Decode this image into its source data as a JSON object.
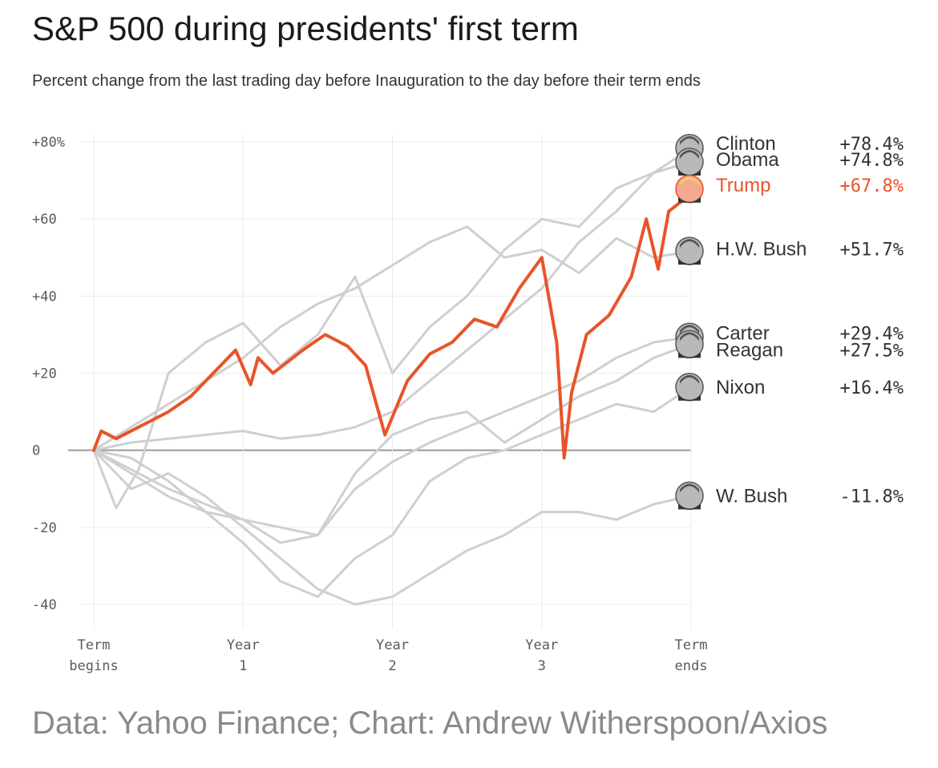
{
  "header": {
    "title": "S&P 500 during presidents' first term",
    "subtitle": "Percent change from the last trading day before Inauguration to the day before their term ends"
  },
  "footer": {
    "source": "Data: Yahoo Finance; Chart: Andrew Witherspoon/Axios"
  },
  "colors": {
    "highlight": "#e8542a",
    "other": "#cfcfcf",
    "zero_line": "#9a9a9a",
    "grid": "#ececec"
  },
  "chart_data": {
    "type": "line",
    "title": "S&P 500 during presidents' first term",
    "subtitle": "Percent change from the last trading day before Inauguration to the day before their term ends",
    "xlim": [
      0,
      4
    ],
    "ylim": [
      -46,
      82
    ],
    "grid": true,
    "x_ticks": [
      {
        "x": 0,
        "line1": "Term",
        "line2": "begins"
      },
      {
        "x": 1,
        "line1": "Year",
        "line2": "1"
      },
      {
        "x": 2,
        "line1": "Year",
        "line2": "2"
      },
      {
        "x": 3,
        "line1": "Year",
        "line2": "3"
      },
      {
        "x": 4,
        "line1": "Term",
        "line2": "ends"
      }
    ],
    "y_ticks": [
      {
        "y": 80,
        "label": "+80%"
      },
      {
        "y": 60,
        "label": "+60"
      },
      {
        "y": 40,
        "label": "+40"
      },
      {
        "y": 20,
        "label": "+20"
      },
      {
        "y": 0,
        "label": "0"
      },
      {
        "y": -20,
        "label": "-20"
      },
      {
        "y": -40,
        "label": "-40"
      }
    ],
    "series": [
      {
        "name": "Clinton",
        "value_label": "+78.4%",
        "highlight": false,
        "icon": "clinton-portrait-icon",
        "label_y": 79.6,
        "x": [
          0,
          0.25,
          0.5,
          0.75,
          1,
          1.25,
          1.5,
          1.75,
          2,
          2.25,
          2.5,
          2.75,
          3,
          3.25,
          3.5,
          3.75,
          4
        ],
        "y": [
          0,
          2,
          3,
          4,
          5,
          3,
          4,
          6,
          10,
          18,
          26,
          34,
          42,
          54,
          62,
          72,
          78.4
        ]
      },
      {
        "name": "Obama",
        "value_label": "+74.8%",
        "highlight": false,
        "icon": "obama-portrait-icon",
        "label_y": 75.4,
        "x": [
          0,
          0.15,
          0.3,
          0.5,
          0.75,
          1,
          1.25,
          1.5,
          1.75,
          2,
          2.25,
          2.5,
          2.75,
          3,
          3.25,
          3.5,
          3.75,
          4
        ],
        "y": [
          0,
          -15,
          -5,
          20,
          28,
          33,
          22,
          30,
          45,
          20,
          32,
          40,
          52,
          60,
          58,
          68,
          72,
          74.8
        ]
      },
      {
        "name": "Trump",
        "value_label": "+67.8%",
        "highlight": true,
        "icon": "trump-portrait-icon",
        "label_y": 68.8,
        "x": [
          0,
          0.05,
          0.15,
          0.3,
          0.5,
          0.65,
          0.8,
          0.95,
          1.05,
          1.1,
          1.2,
          1.4,
          1.55,
          1.7,
          1.82,
          1.95,
          2.1,
          2.25,
          2.4,
          2.55,
          2.7,
          2.85,
          3.0,
          3.1,
          3.15,
          3.2,
          3.3,
          3.45,
          3.6,
          3.7,
          3.78,
          3.85,
          3.95,
          4
        ],
        "y": [
          0,
          5,
          3,
          6,
          10,
          14,
          20,
          26,
          17,
          24,
          20,
          26,
          30,
          27,
          22,
          4,
          18,
          25,
          28,
          34,
          32,
          42,
          50,
          28,
          -2,
          15,
          30,
          35,
          45,
          60,
          47,
          62,
          65,
          67.8
        ]
      },
      {
        "name": "H.W. Bush",
        "value_label": "+51.7%",
        "highlight": false,
        "icon": "hw-bush-portrait-icon",
        "label_y": 52.2,
        "x": [
          0,
          0.25,
          0.5,
          0.75,
          1,
          1.25,
          1.5,
          1.75,
          2,
          2.25,
          2.5,
          2.75,
          3,
          3.25,
          3.5,
          3.75,
          4
        ],
        "y": [
          0,
          6,
          12,
          18,
          24,
          32,
          38,
          42,
          48,
          54,
          58,
          50,
          52,
          46,
          55,
          50,
          51.7
        ]
      },
      {
        "name": "Carter",
        "value_label": "+29.4%",
        "highlight": false,
        "icon": "carter-portrait-icon",
        "label_y": 30.4,
        "x": [
          0,
          0.25,
          0.5,
          0.75,
          1,
          1.25,
          1.5,
          1.75,
          2,
          2.25,
          2.5,
          2.75,
          3,
          3.25,
          3.5,
          3.75,
          4
        ],
        "y": [
          0,
          -6,
          -12,
          -16,
          -18,
          -20,
          -22,
          -10,
          -3,
          2,
          6,
          10,
          14,
          18,
          24,
          28,
          29.4
        ]
      },
      {
        "name": "Reagan",
        "value_label": "+27.5%",
        "highlight": false,
        "icon": "reagan-portrait-icon",
        "label_y": 26.0,
        "x": [
          0,
          0.25,
          0.5,
          0.75,
          1,
          1.25,
          1.5,
          1.75,
          2,
          2.25,
          2.5,
          2.75,
          3,
          3.25,
          3.5,
          3.75,
          4
        ],
        "y": [
          0,
          -5,
          -10,
          -14,
          -18,
          -24,
          -22,
          -6,
          4,
          8,
          10,
          2,
          8,
          14,
          18,
          24,
          27.5
        ]
      },
      {
        "name": "Nixon",
        "value_label": "+16.4%",
        "highlight": false,
        "icon": "nixon-portrait-icon",
        "label_y": 16.4,
        "x": [
          0,
          0.25,
          0.5,
          0.75,
          1,
          1.25,
          1.5,
          1.75,
          2,
          2.25,
          2.5,
          2.75,
          3,
          3.25,
          3.5,
          3.75,
          4
        ],
        "y": [
          0,
          -2,
          -8,
          -16,
          -24,
          -34,
          -38,
          -28,
          -22,
          -8,
          -2,
          0,
          4,
          8,
          12,
          10,
          16.4
        ]
      },
      {
        "name": "W. Bush",
        "value_label": "-11.8%",
        "highlight": false,
        "icon": "w-bush-portrait-icon",
        "label_y": -11.8,
        "x": [
          0,
          0.25,
          0.5,
          0.75,
          1,
          1.25,
          1.5,
          1.75,
          2,
          2.25,
          2.5,
          2.75,
          3,
          3.25,
          3.5,
          3.75,
          4
        ],
        "y": [
          0,
          -10,
          -6,
          -12,
          -20,
          -28,
          -36,
          -40,
          -38,
          -32,
          -26,
          -22,
          -16,
          -16,
          -18,
          -14,
          -11.8
        ]
      }
    ]
  }
}
